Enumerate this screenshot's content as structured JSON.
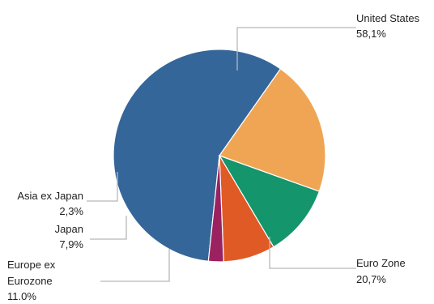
{
  "chart_data": {
    "type": "pie",
    "title": "",
    "legend": "none",
    "slices": [
      {
        "label": "United States",
        "value_label": "58,1%",
        "value": 58.1,
        "color": "#356699"
      },
      {
        "label": "Euro Zone",
        "value_label": "20,7%",
        "value": 20.7,
        "color": "#f0a554"
      },
      {
        "label": "Europe ex Eurozone",
        "label_lines": [
          "Europe ex",
          "Eurozone"
        ],
        "value_label": "11,0%",
        "value": 11.0,
        "color": "#14956c"
      },
      {
        "label": "Japan",
        "value_label": "7,9%",
        "value": 7.9,
        "color": "#e05a26"
      },
      {
        "label": "Asia ex Japan",
        "value_label": "2,3%",
        "value": 2.3,
        "color": "#9b2260"
      }
    ]
  }
}
